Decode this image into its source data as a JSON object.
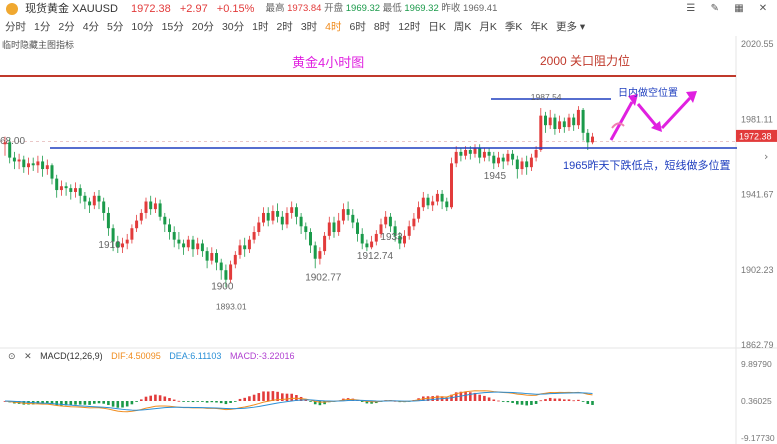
{
  "header": {
    "name": "现货黄金 XAUUSD",
    "price": "1972.38",
    "change": "+2.97",
    "change_pct": "+0.15%",
    "high_label": "最高",
    "high": "1973.84",
    "open_label": "开盘",
    "open": "1969.32",
    "low_label": "最低",
    "low": "1969.32",
    "prev_label": "昨收",
    "prev": "1969.41",
    "icons": [
      "settings-icon",
      "draw-icon",
      "layout-icon",
      "close-icon"
    ]
  },
  "tabs": [
    "分时",
    "1分",
    "2分",
    "4分",
    "5分",
    "10分",
    "15分",
    "20分",
    "30分",
    "1时",
    "2时",
    "3时",
    "4时",
    "6时",
    "8时",
    "12时",
    "日K",
    "周K",
    "月K",
    "季K",
    "年K",
    "更多"
  ],
  "active_tab": "4时",
  "hint": "临时隐藏主图指标",
  "colors": {
    "up": "#e23b3b",
    "down": "#1a9a4a",
    "accent": "#f08c1e",
    "support": "#1f3fbf",
    "resistance": "#c0392b",
    "annot": "#e020e0"
  },
  "annotations": {
    "title": "黄金4小时图",
    "resistance_label": "2000 关口阻力位",
    "short_label": "日内做空位置",
    "long_label": "1965昨天下跌低点，短线做多位置"
  },
  "chart_data": {
    "type": "candlestick",
    "y_ticks": [
      "2020.55",
      "1981.11",
      "1941.67",
      "1902.23",
      "1862.79"
    ],
    "y_range": [
      1862.79,
      2020.55
    ],
    "last_price": "1972.38",
    "left_price_label": "68.00",
    "resistance_level": 2000,
    "support_level": 1965,
    "short_level": 1987,
    "candles": [
      [
        1968,
        1969,
        1962,
        1972
      ],
      [
        1969,
        1961,
        1958,
        1971
      ],
      [
        1961,
        1959,
        1955,
        1964
      ],
      [
        1959,
        1960,
        1955,
        1963
      ],
      [
        1960,
        1956,
        1953,
        1962
      ],
      [
        1956,
        1958,
        1952,
        1961
      ],
      [
        1958,
        1957,
        1954,
        1961
      ],
      [
        1957,
        1959,
        1953,
        1962
      ],
      [
        1959,
        1955,
        1951,
        1962
      ],
      [
        1955,
        1957,
        1952,
        1960
      ],
      [
        1957,
        1950,
        1947,
        1958
      ],
      [
        1950,
        1944,
        1940,
        1952
      ],
      [
        1944,
        1946,
        1941,
        1949
      ],
      [
        1946,
        1945,
        1941,
        1948
      ],
      [
        1945,
        1943,
        1939,
        1947
      ],
      [
        1943,
        1945,
        1940,
        1948
      ],
      [
        1945,
        1941,
        1937,
        1947
      ],
      [
        1941,
        1938,
        1934,
        1943
      ],
      [
        1938,
        1936,
        1932,
        1940
      ],
      [
        1936,
        1941,
        1934,
        1943
      ],
      [
        1941,
        1938,
        1934,
        1944
      ],
      [
        1938,
        1932,
        1928,
        1940
      ],
      [
        1932,
        1924,
        1920,
        1935
      ],
      [
        1924,
        1917,
        1912,
        1926
      ],
      [
        1917,
        1914,
        1911,
        1920
      ],
      [
        1914,
        1916,
        1911,
        1919
      ],
      [
        1916,
        1918,
        1913,
        1921
      ],
      [
        1918,
        1924,
        1916,
        1926
      ],
      [
        1924,
        1928,
        1922,
        1931
      ],
      [
        1928,
        1932,
        1926,
        1934
      ],
      [
        1932,
        1938,
        1929,
        1940
      ],
      [
        1938,
        1934,
        1931,
        1941
      ],
      [
        1934,
        1937,
        1932,
        1940
      ],
      [
        1937,
        1930,
        1928,
        1939
      ],
      [
        1930,
        1926,
        1922,
        1932
      ],
      [
        1926,
        1922,
        1918,
        1929
      ],
      [
        1922,
        1918,
        1914,
        1925
      ],
      [
        1918,
        1916,
        1913,
        1922
      ],
      [
        1916,
        1914,
        1910,
        1918
      ],
      [
        1914,
        1918,
        1912,
        1920
      ],
      [
        1918,
        1913,
        1909,
        1920
      ],
      [
        1913,
        1916,
        1910,
        1919
      ],
      [
        1916,
        1912,
        1909,
        1918
      ],
      [
        1912,
        1907,
        1903,
        1914
      ],
      [
        1907,
        1911,
        1905,
        1914
      ],
      [
        1911,
        1906,
        1902,
        1913
      ],
      [
        1906,
        1902,
        1897,
        1908
      ],
      [
        1902,
        1897,
        1893,
        1905
      ],
      [
        1897,
        1905,
        1895,
        1907
      ],
      [
        1905,
        1910,
        1903,
        1912
      ],
      [
        1910,
        1915,
        1908,
        1918
      ],
      [
        1915,
        1913,
        1909,
        1919
      ],
      [
        1913,
        1918,
        1911,
        1920
      ],
      [
        1918,
        1922,
        1916,
        1925
      ],
      [
        1922,
        1927,
        1920,
        1930
      ],
      [
        1927,
        1932,
        1925,
        1935
      ],
      [
        1932,
        1928,
        1925,
        1935
      ],
      [
        1928,
        1933,
        1926,
        1936
      ],
      [
        1933,
        1930,
        1927,
        1937
      ],
      [
        1930,
        1926,
        1923,
        1933
      ],
      [
        1926,
        1932,
        1924,
        1935
      ],
      [
        1932,
        1935,
        1929,
        1938
      ],
      [
        1935,
        1930,
        1926,
        1937
      ],
      [
        1930,
        1925,
        1921,
        1932
      ],
      [
        1925,
        1922,
        1918,
        1927
      ],
      [
        1922,
        1915,
        1911,
        1924
      ],
      [
        1915,
        1908,
        1903,
        1917
      ],
      [
        1908,
        1912,
        1905,
        1914
      ],
      [
        1912,
        1920,
        1910,
        1922
      ],
      [
        1920,
        1927,
        1918,
        1930
      ],
      [
        1927,
        1922,
        1919,
        1930
      ],
      [
        1922,
        1928,
        1920,
        1932
      ],
      [
        1928,
        1934,
        1926,
        1937
      ],
      [
        1934,
        1931,
        1928,
        1938
      ],
      [
        1931,
        1927,
        1924,
        1934
      ],
      [
        1927,
        1921,
        1917,
        1929
      ],
      [
        1921,
        1916,
        1913,
        1924
      ],
      [
        1916,
        1914,
        1912,
        1918
      ],
      [
        1914,
        1917,
        1913,
        1920
      ],
      [
        1917,
        1921,
        1915,
        1923
      ],
      [
        1921,
        1926,
        1919,
        1929
      ],
      [
        1926,
        1930,
        1924,
        1933
      ],
      [
        1930,
        1925,
        1922,
        1932
      ],
      [
        1925,
        1920,
        1917,
        1928
      ],
      [
        1920,
        1916,
        1913,
        1922
      ],
      [
        1916,
        1920,
        1914,
        1923
      ],
      [
        1920,
        1925,
        1918,
        1928
      ],
      [
        1925,
        1929,
        1923,
        1932
      ],
      [
        1929,
        1935,
        1927,
        1938
      ],
      [
        1935,
        1940,
        1933,
        1943
      ],
      [
        1940,
        1936,
        1934,
        1942
      ],
      [
        1936,
        1938,
        1933,
        1941
      ],
      [
        1938,
        1942,
        1936,
        1944
      ],
      [
        1942,
        1938,
        1934,
        1944
      ],
      [
        1938,
        1935,
        1933,
        1940
      ],
      [
        1935,
        1958,
        1934,
        1961
      ],
      [
        1958,
        1964,
        1956,
        1967
      ],
      [
        1964,
        1962,
        1959,
        1966
      ],
      [
        1962,
        1965,
        1960,
        1967
      ],
      [
        1965,
        1963,
        1960,
        1967
      ],
      [
        1963,
        1966,
        1961,
        1968
      ],
      [
        1966,
        1961,
        1958,
        1968
      ],
      [
        1961,
        1964,
        1959,
        1966
      ],
      [
        1964,
        1962,
        1959,
        1966
      ],
      [
        1962,
        1958,
        1955,
        1964
      ],
      [
        1958,
        1961,
        1956,
        1964
      ],
      [
        1961,
        1959,
        1955,
        1963
      ],
      [
        1959,
        1963,
        1957,
        1965
      ],
      [
        1963,
        1960,
        1957,
        1965
      ],
      [
        1960,
        1955,
        1950,
        1962
      ],
      [
        1955,
        1959,
        1952,
        1961
      ],
      [
        1959,
        1956,
        1952,
        1962
      ],
      [
        1956,
        1961,
        1954,
        1963
      ],
      [
        1961,
        1965,
        1959,
        1967
      ],
      [
        1965,
        1983,
        1964,
        1987
      ],
      [
        1983,
        1978,
        1974,
        1985
      ],
      [
        1978,
        1982,
        1976,
        1986
      ],
      [
        1982,
        1976,
        1973,
        1984
      ],
      [
        1976,
        1980,
        1974,
        1983
      ],
      [
        1980,
        1977,
        1974,
        1982
      ],
      [
        1977,
        1982,
        1975,
        1984
      ],
      [
        1982,
        1978,
        1975,
        1984
      ],
      [
        1978,
        1986,
        1976,
        1988
      ],
      [
        1986,
        1974,
        1970,
        1987
      ],
      [
        1974,
        1969,
        1965,
        1976
      ],
      [
        1969,
        1972,
        1968,
        1974
      ]
    ],
    "point_labels": [
      {
        "label": "1910",
        "idx": 22
      },
      {
        "label": "1900",
        "idx": 46
      },
      {
        "label": "1893.01",
        "idx": 47
      },
      {
        "label": "1902.77",
        "idx": 66
      },
      {
        "label": "1912.74",
        "idx": 77
      },
      {
        "label": "1933",
        "idx": 82
      },
      {
        "label": "1945",
        "idx": 104
      },
      {
        "label": "1987.54",
        "idx": 114
      }
    ],
    "macd": {
      "label": "MACD(12,26,9)",
      "dif_label": "DIF:4.50095",
      "dea_label": "DEA:6.11103",
      "macd_label": "MACD:-3.22016",
      "y_ticks": [
        "9.89790",
        "0.36025",
        "-9.17730"
      ],
      "y_range": [
        -9.1773,
        9.8979
      ]
    }
  }
}
